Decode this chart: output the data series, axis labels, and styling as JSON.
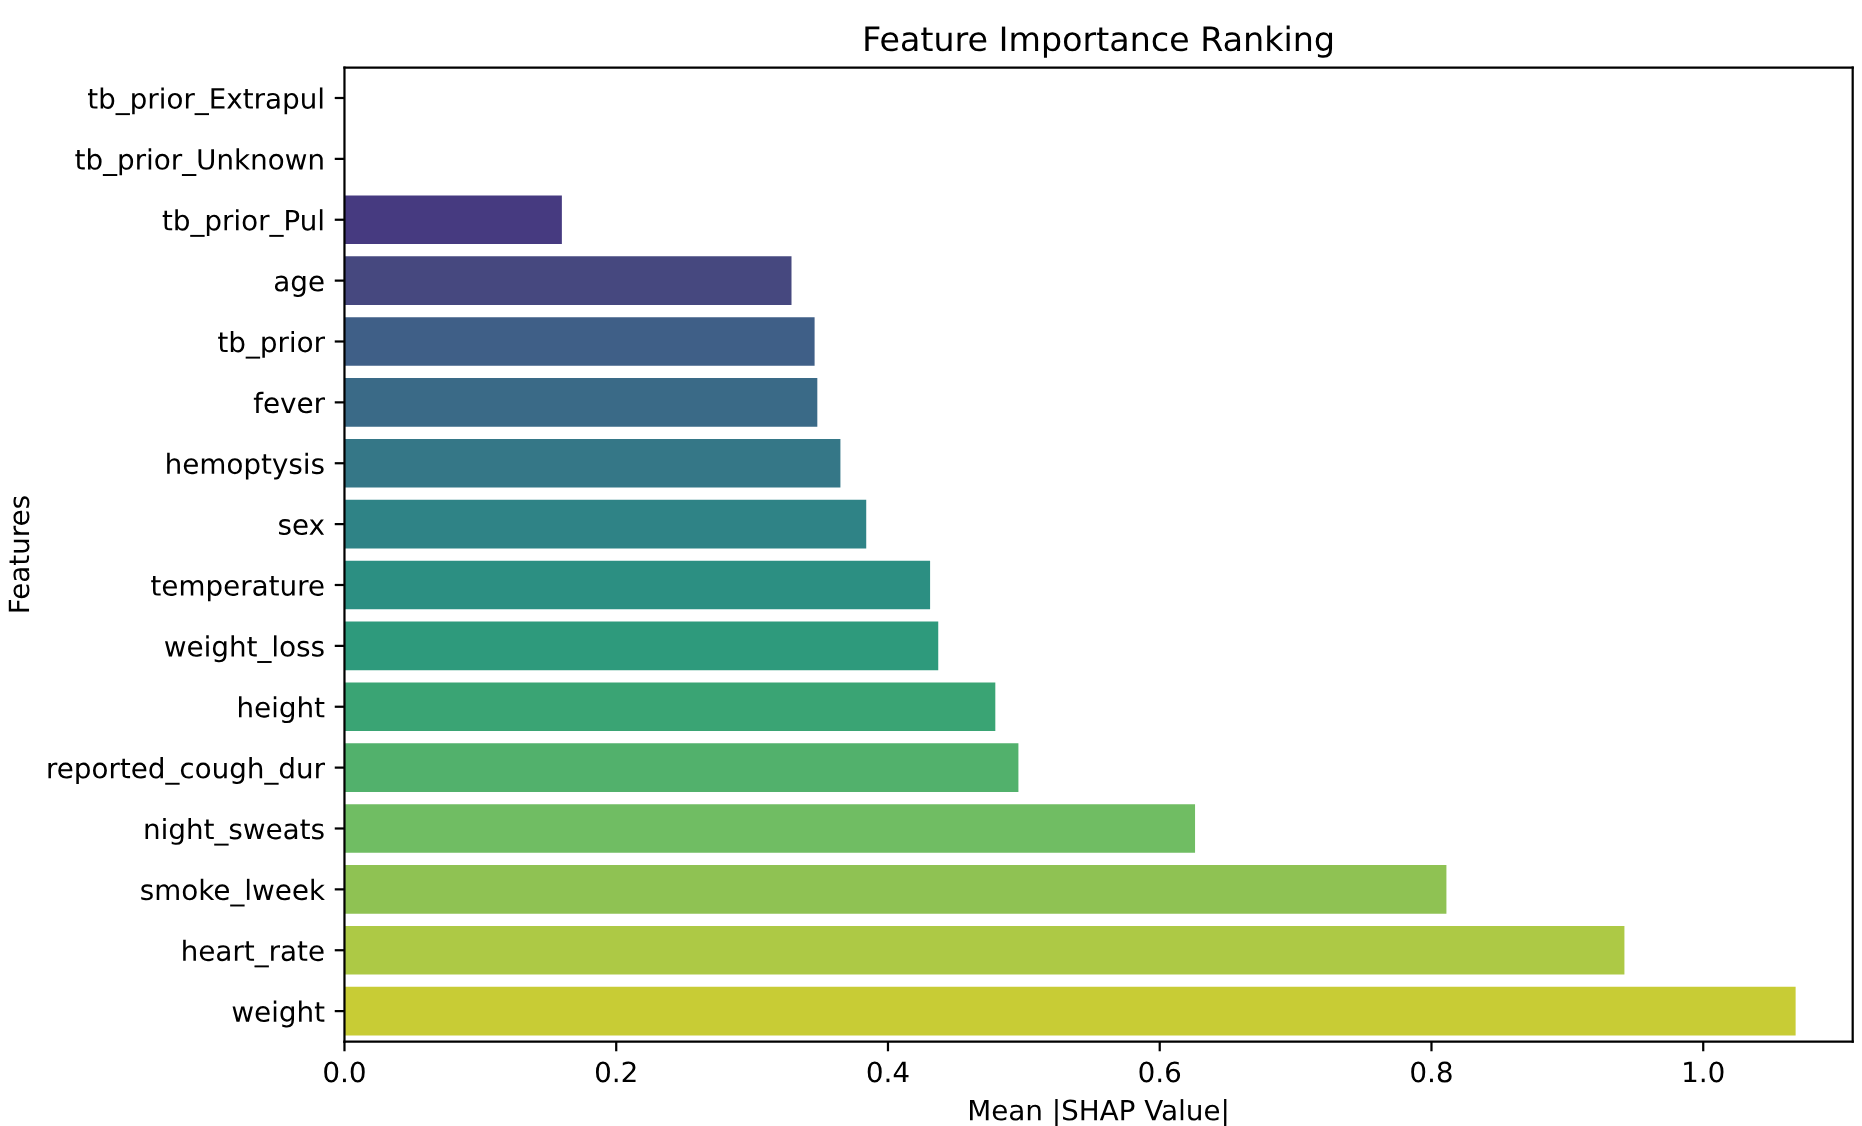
{
  "chart_data": {
    "type": "bar",
    "orientation": "horizontal",
    "title": "Feature Importance Ranking",
    "xlabel": "Mean |SHAP Value|",
    "ylabel": "Features",
    "categories": [
      "tb_prior_Extrapul",
      "tb_prior_Unknown",
      "tb_prior_Pul",
      "age",
      "tb_prior",
      "fever",
      "hemoptysis",
      "sex",
      "temperature",
      "weight_loss",
      "height",
      "reported_cough_dur",
      "night_sweats",
      "smoke_lweek",
      "heart_rate",
      "weight"
    ],
    "values": [
      0,
      0,
      0.16,
      0.329,
      0.346,
      0.348,
      0.365,
      0.384,
      0.431,
      0.437,
      0.479,
      0.496,
      0.626,
      0.811,
      0.942,
      1.068
    ],
    "colors": [
      "#4a2a73",
      "#4a347c",
      "#463a80",
      "#46487f",
      "#3f5f87",
      "#3a6a87",
      "#357787",
      "#2f8386",
      "#2c8f82",
      "#2e9a7c",
      "#3aa474",
      "#52b16c",
      "#70bd63",
      "#8fc253",
      "#adc945",
      "#c8cc35"
    ],
    "xlim": [
      0,
      1.11
    ],
    "xticks": [
      {
        "value": 0,
        "label": "0.0"
      },
      {
        "value": 0.2,
        "label": "0.2"
      },
      {
        "value": 0.4,
        "label": "0.4"
      },
      {
        "value": 0.6,
        "label": "0.6"
      },
      {
        "value": 0.8,
        "label": "0.8"
      },
      {
        "value": 1.0,
        "label": "1.0"
      }
    ],
    "grid": false
  }
}
